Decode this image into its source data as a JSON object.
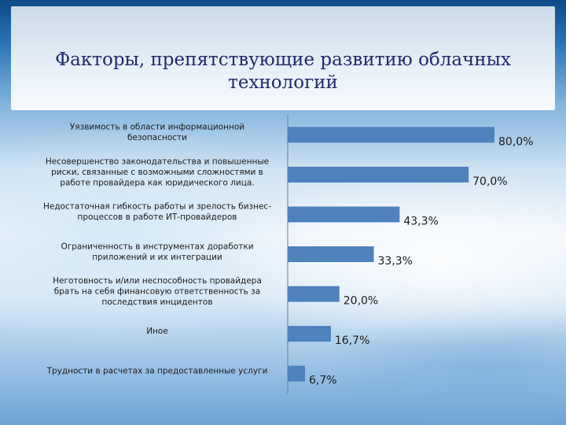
{
  "title": "Факторы, препятствующие развитию облачных\nтехнологий",
  "chart_data": {
    "type": "bar",
    "orientation": "horizontal",
    "categories": [
      [
        "Уязвимость в области информационной",
        "безопасности"
      ],
      [
        "Несовершенство законодательства и повышенные",
        "риски, связанные с возможными сложностями в",
        "работе провайдера как юридического лица."
      ],
      [
        "Недостаточная гибкость работы и зрелость бизнес-",
        "процессов в работе ИТ-провайдеров"
      ],
      [
        "Ограниченность в инструментах доработки",
        "приложений и их интеграции"
      ],
      [
        "Неготовность и/или неспособность провайдера",
        "брать на себя финансовую ответственность за",
        "последствия инцидентов"
      ],
      [
        "Иное"
      ],
      [
        "Трудности в расчетах за предоставленные услуги"
      ]
    ],
    "values": [
      80.0,
      70.0,
      43.3,
      33.3,
      20.0,
      16.7,
      6.7
    ],
    "value_labels": [
      "80,0%",
      "70,0%",
      "43,3%",
      "33,3%",
      "20,0%",
      "16,7%",
      "6,7%"
    ],
    "xlim": [
      0,
      100
    ],
    "bar_color": "#4f81bd",
    "grid": false,
    "legend": "none"
  }
}
